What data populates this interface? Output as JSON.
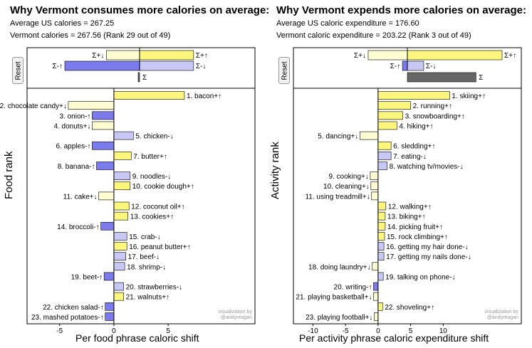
{
  "colors": {
    "pos_up": "#fcf67c",
    "pos_down": "#fdfbd0",
    "neg_up": "#7b7bed",
    "neg_down": "#c8c8f6",
    "total": "#666666",
    "stroke": "#000000"
  },
  "credit": {
    "line1": "visualization by",
    "line2": "@andyreagan"
  },
  "reset_label": "Reset",
  "chart_data": [
    {
      "type": "bar",
      "orientation": "horizontal",
      "title": "Why Vermont consumes more calories on average:",
      "stat1": "Average US calories = 267.25",
      "stat2": "Vermont calories = 267.56 (Rank 29 out of 49)",
      "ylabel": "Food rank",
      "xlabel": "Per food phrase caloric shift",
      "xlim": [
        -8,
        13
      ],
      "xticks": [
        -5,
        0,
        5
      ],
      "xtick_labels": [
        "-5",
        "0",
        "5"
      ],
      "summary": {
        "labels": [
          "Σ+↓",
          "Σ+↑",
          "Σ-↑",
          "Σ-↓",
          "Σ"
        ],
        "pos_down": -8,
        "pos_up": 13,
        "neg_up": -18,
        "neg_down": 13,
        "total": -0.3
      },
      "items": [
        {
          "rank": 1,
          "label": "1. bacon+↑",
          "value": 6.5,
          "cat": "pos_up"
        },
        {
          "rank": 2,
          "label": "2. chocolate candy+↓",
          "value": -4.2,
          "cat": "pos_down"
        },
        {
          "rank": 3,
          "label": "3. onion-↑",
          "value": -2.0,
          "cat": "neg_up"
        },
        {
          "rank": 4,
          "label": "4. donuts+↓",
          "value": -2.0,
          "cat": "pos_down"
        },
        {
          "rank": 5,
          "label": "5. chicken-↓",
          "value": 1.8,
          "cat": "neg_down"
        },
        {
          "rank": 6,
          "label": "6. apples-↑",
          "value": -2.0,
          "cat": "neg_up"
        },
        {
          "rank": 7,
          "label": "7. butter+↑",
          "value": 1.6,
          "cat": "pos_up"
        },
        {
          "rank": 8,
          "label": "8. banana-↑",
          "value": -1.6,
          "cat": "neg_up"
        },
        {
          "rank": 9,
          "label": "9. noodles-↓",
          "value": 1.5,
          "cat": "neg_down"
        },
        {
          "rank": 10,
          "label": "10. cookie dough+↑",
          "value": 1.5,
          "cat": "pos_up"
        },
        {
          "rank": 11,
          "label": "11. cake+↓",
          "value": -1.4,
          "cat": "pos_down"
        },
        {
          "rank": 12,
          "label": "12. coconut oil+↑",
          "value": 1.4,
          "cat": "pos_up"
        },
        {
          "rank": 13,
          "label": "13. cookies+↑",
          "value": 1.3,
          "cat": "pos_up"
        },
        {
          "rank": 14,
          "label": "14. broccoli-↑",
          "value": -1.2,
          "cat": "neg_up"
        },
        {
          "rank": 15,
          "label": "15. crab-↓",
          "value": 1.2,
          "cat": "neg_down"
        },
        {
          "rank": 16,
          "label": "16. peanut butter+↑",
          "value": 1.2,
          "cat": "pos_up"
        },
        {
          "rank": 17,
          "label": "17. beef-↓",
          "value": 1.1,
          "cat": "neg_down"
        },
        {
          "rank": 18,
          "label": "18. shrimp-↓",
          "value": 1.0,
          "cat": "neg_down"
        },
        {
          "rank": 19,
          "label": "19. beet-↑",
          "value": -0.9,
          "cat": "neg_up"
        },
        {
          "rank": 20,
          "label": "20. strawberries-↓",
          "value": 0.9,
          "cat": "neg_down"
        },
        {
          "rank": 21,
          "label": "21. walnuts+↑",
          "value": 0.9,
          "cat": "pos_up"
        },
        {
          "rank": 22,
          "label": "22. chicken salad-↑",
          "value": -0.8,
          "cat": "neg_up"
        },
        {
          "rank": 23,
          "label": "23. mashed potatoes-↑",
          "value": -0.8,
          "cat": "neg_up"
        }
      ]
    },
    {
      "type": "bar",
      "orientation": "horizontal",
      "title": "Why Vermont expends more calories on average:",
      "stat1": "Average US caloric expenditure = 176.60",
      "stat2": "Vermont caloric expenditure = 203.22 (Rank 3 out of 49)",
      "ylabel": "Activity rank",
      "xlabel": "Per activity phrase caloric expenditure shift",
      "xlim": [
        -13,
        22
      ],
      "xticks": [
        -10,
        -5,
        0,
        5,
        10
      ],
      "xtick_labels": [
        "-10",
        "-5",
        "0",
        "5",
        "10"
      ],
      "summary": {
        "labels": [
          "Σ+↓",
          "Σ+↑",
          "Σ-↑",
          "Σ-↓",
          "Σ"
        ],
        "pos_down": -12,
        "pos_up": 29,
        "neg_up": -1.5,
        "neg_down": 5,
        "total": 21
      },
      "items": [
        {
          "rank": 1,
          "label": "1. skiing+↑",
          "value": 11.0,
          "cat": "pos_up"
        },
        {
          "rank": 2,
          "label": "2. running+↑",
          "value": 5.0,
          "cat": "pos_up"
        },
        {
          "rank": 3,
          "label": "3. snowboarding+↑",
          "value": 3.8,
          "cat": "pos_up"
        },
        {
          "rank": 4,
          "label": "4. hiking+↑",
          "value": 2.9,
          "cat": "pos_up"
        },
        {
          "rank": 5,
          "label": "5. dancing+↓",
          "value": -2.8,
          "cat": "pos_down"
        },
        {
          "rank": 6,
          "label": "6. sledding+↑",
          "value": 2.0,
          "cat": "pos_up"
        },
        {
          "rank": 7,
          "label": "7. eating-↓",
          "value": 2.0,
          "cat": "neg_down"
        },
        {
          "rank": 8,
          "label": "8. watching tv/movies-↓",
          "value": 1.4,
          "cat": "neg_down"
        },
        {
          "rank": 9,
          "label": "9. cooking+↓",
          "value": -1.2,
          "cat": "pos_down"
        },
        {
          "rank": 10,
          "label": "10. cleaning+↓",
          "value": -1.1,
          "cat": "pos_down"
        },
        {
          "rank": 11,
          "label": "11. using treadmill+↓",
          "value": -1.0,
          "cat": "pos_down"
        },
        {
          "rank": 12,
          "label": "12. walking+↑",
          "value": 1.2,
          "cat": "pos_up"
        },
        {
          "rank": 13,
          "label": "13. biking+↑",
          "value": 1.1,
          "cat": "pos_up"
        },
        {
          "rank": 14,
          "label": "14. picking fruit+↑",
          "value": 1.1,
          "cat": "pos_up"
        },
        {
          "rank": 15,
          "label": "15. rock climbing+↑",
          "value": 1.0,
          "cat": "pos_up"
        },
        {
          "rank": 16,
          "label": "16. getting my hair done-↓",
          "value": 0.9,
          "cat": "neg_down"
        },
        {
          "rank": 17,
          "label": "17. getting my nails done-↓",
          "value": 0.9,
          "cat": "neg_down"
        },
        {
          "rank": 18,
          "label": "18. doing laundry+↓",
          "value": -0.9,
          "cat": "pos_down"
        },
        {
          "rank": 19,
          "label": "19. talking on phone-↓",
          "value": 0.8,
          "cat": "neg_down"
        },
        {
          "rank": 20,
          "label": "20. writing-↑",
          "value": -0.7,
          "cat": "neg_up"
        },
        {
          "rank": 21,
          "label": "21. playing basketball+↓",
          "value": -0.7,
          "cat": "pos_down"
        },
        {
          "rank": 22,
          "label": "22. shoveling+↑",
          "value": 0.7,
          "cat": "pos_up"
        },
        {
          "rank": 23,
          "label": "23. playing football+↓",
          "value": -0.6,
          "cat": "pos_down"
        }
      ]
    }
  ]
}
